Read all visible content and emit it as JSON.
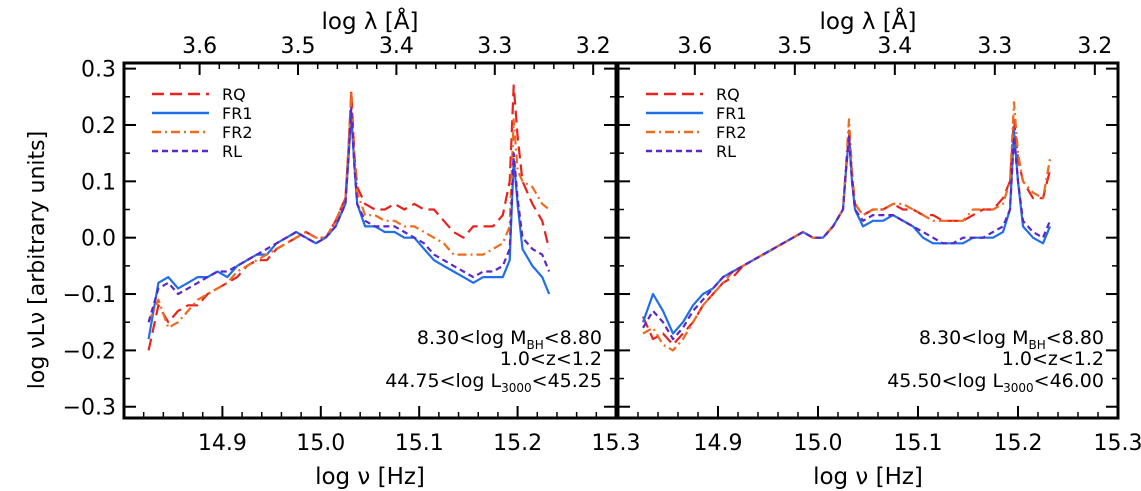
{
  "figure": {
    "top_axis_label": "log λ [Å]",
    "bottom_axis_label": "log ν [Hz]",
    "left_axis_label": "log νLν [arbitrary units]"
  },
  "chart_data": [
    {
      "type": "line",
      "panel": "left",
      "xlabel": "log ν [Hz]",
      "ylabel": "log νLν [arbitrary units]",
      "top_xlabel": "log λ [Å]",
      "xlim": [
        14.8,
        15.3
      ],
      "ylim": [
        -0.32,
        0.31
      ],
      "x_ticks": [
        14.9,
        15.0,
        15.1,
        15.2,
        15.3
      ],
      "x_tick_labels": [
        "14.9",
        "15.0",
        "15.1",
        "15.2",
        "15.3"
      ],
      "y_ticks": [
        -0.3,
        -0.2,
        -0.1,
        0.0,
        0.1,
        0.2,
        0.3
      ],
      "y_tick_labels": [
        "−0.3",
        "−0.2",
        "−0.1",
        "0.0",
        "0.1",
        "0.2",
        "0.3"
      ],
      "top_ticks": [
        3.6,
        3.5,
        3.4,
        3.3,
        3.2
      ],
      "top_tick_labels": [
        "3.6",
        "3.5",
        "3.4",
        "3.3",
        "3.2"
      ],
      "legend_position": "top-left",
      "annotations": [
        "8.30<log M",
        "BH",
        "<8.80",
        "1.0<z<1.2",
        "44.75<log L",
        "3000",
        "<45.25"
      ],
      "series": [
        {
          "name": "RQ",
          "color": "#e8221f",
          "dash": "12,6",
          "x": [
            14.825,
            14.835,
            14.845,
            14.855,
            14.865,
            14.875,
            14.885,
            14.895,
            14.905,
            14.915,
            14.925,
            14.935,
            14.945,
            14.955,
            14.965,
            14.975,
            14.985,
            14.995,
            15.005,
            15.015,
            15.025,
            15.028,
            15.031,
            15.034,
            15.037,
            15.045,
            15.055,
            15.065,
            15.075,
            15.085,
            15.095,
            15.105,
            15.115,
            15.125,
            15.135,
            15.145,
            15.155,
            15.165,
            15.175,
            15.185,
            15.192,
            15.196,
            15.2,
            15.205,
            15.215,
            15.225,
            15.232
          ],
          "y": [
            -0.2,
            -0.12,
            -0.15,
            -0.13,
            -0.12,
            -0.12,
            -0.1,
            -0.09,
            -0.08,
            -0.07,
            -0.05,
            -0.04,
            -0.04,
            -0.02,
            -0.01,
            0.0,
            0.01,
            0.0,
            0.0,
            0.03,
            0.07,
            0.15,
            0.26,
            0.15,
            0.09,
            0.06,
            0.05,
            0.05,
            0.06,
            0.05,
            0.06,
            0.05,
            0.05,
            0.03,
            0.01,
            0.0,
            0.02,
            0.02,
            0.02,
            0.04,
            0.1,
            0.27,
            0.18,
            0.1,
            0.06,
            0.03,
            -0.02
          ]
        },
        {
          "name": "FR1",
          "color": "#1f6fe8",
          "dash": "",
          "x": [
            14.825,
            14.835,
            14.845,
            14.855,
            14.865,
            14.875,
            14.885,
            14.895,
            14.905,
            14.915,
            14.925,
            14.935,
            14.945,
            14.955,
            14.965,
            14.975,
            14.985,
            14.995,
            15.005,
            15.015,
            15.025,
            15.028,
            15.031,
            15.034,
            15.037,
            15.045,
            15.055,
            15.065,
            15.075,
            15.085,
            15.095,
            15.105,
            15.115,
            15.125,
            15.135,
            15.145,
            15.155,
            15.165,
            15.175,
            15.185,
            15.192,
            15.196,
            15.2,
            15.205,
            15.215,
            15.225,
            15.232
          ],
          "y": [
            -0.18,
            -0.08,
            -0.07,
            -0.09,
            -0.08,
            -0.07,
            -0.07,
            -0.06,
            -0.07,
            -0.05,
            -0.04,
            -0.03,
            -0.03,
            -0.01,
            0.0,
            0.01,
            0.0,
            -0.01,
            0.0,
            0.02,
            0.06,
            0.14,
            0.22,
            0.13,
            0.06,
            0.02,
            0.02,
            0.01,
            0.01,
            0.0,
            0.0,
            -0.02,
            -0.04,
            -0.05,
            -0.06,
            -0.07,
            -0.08,
            -0.07,
            -0.07,
            -0.07,
            -0.04,
            0.14,
            0.06,
            -0.02,
            -0.05,
            -0.07,
            -0.1
          ]
        },
        {
          "name": "FR2",
          "color": "#f06a1e",
          "dash": "9,4,2,4",
          "x": [
            14.825,
            14.835,
            14.845,
            14.855,
            14.865,
            14.875,
            14.885,
            14.895,
            14.905,
            14.915,
            14.925,
            14.935,
            14.945,
            14.955,
            14.965,
            14.975,
            14.985,
            14.995,
            15.005,
            15.015,
            15.025,
            15.028,
            15.031,
            15.034,
            15.037,
            15.045,
            15.055,
            15.065,
            15.075,
            15.085,
            15.095,
            15.105,
            15.115,
            15.125,
            15.135,
            15.145,
            15.155,
            15.165,
            15.175,
            15.185,
            15.192,
            15.196,
            15.2,
            15.205,
            15.215,
            15.225,
            15.232
          ],
          "y": [
            -0.15,
            -0.11,
            -0.16,
            -0.15,
            -0.13,
            -0.11,
            -0.1,
            -0.09,
            -0.08,
            -0.06,
            -0.05,
            -0.04,
            -0.03,
            -0.02,
            -0.01,
            0.0,
            0.01,
            0.0,
            0.0,
            0.03,
            0.07,
            0.16,
            0.26,
            0.15,
            0.08,
            0.04,
            0.04,
            0.03,
            0.03,
            0.02,
            0.02,
            0.01,
            0.0,
            -0.01,
            -0.03,
            -0.03,
            -0.03,
            -0.03,
            -0.02,
            -0.01,
            0.02,
            0.21,
            0.12,
            0.1,
            0.09,
            0.06,
            0.05
          ]
        },
        {
          "name": "RL",
          "color": "#5b27c9",
          "dash": "6,4",
          "x": [
            14.825,
            14.835,
            14.845,
            14.855,
            14.865,
            14.875,
            14.885,
            14.895,
            14.905,
            14.915,
            14.925,
            14.935,
            14.945,
            14.955,
            14.965,
            14.975,
            14.985,
            14.995,
            15.005,
            15.015,
            15.025,
            15.028,
            15.031,
            15.034,
            15.037,
            15.045,
            15.055,
            15.065,
            15.075,
            15.085,
            15.095,
            15.105,
            15.115,
            15.125,
            15.135,
            15.145,
            15.155,
            15.165,
            15.175,
            15.185,
            15.192,
            15.196,
            15.2,
            15.205,
            15.215,
            15.225,
            15.232
          ],
          "y": [
            -0.15,
            -0.09,
            -0.08,
            -0.1,
            -0.09,
            -0.08,
            -0.07,
            -0.06,
            -0.06,
            -0.05,
            -0.04,
            -0.03,
            -0.02,
            -0.01,
            0.0,
            0.01,
            0.0,
            -0.01,
            0.0,
            0.02,
            0.06,
            0.14,
            0.23,
            0.13,
            0.06,
            0.03,
            0.02,
            0.02,
            0.02,
            0.01,
            0.0,
            -0.01,
            -0.03,
            -0.04,
            -0.05,
            -0.06,
            -0.07,
            -0.06,
            -0.06,
            -0.05,
            -0.02,
            0.15,
            0.07,
            0.0,
            -0.02,
            -0.03,
            -0.06
          ]
        }
      ]
    },
    {
      "type": "line",
      "panel": "right",
      "xlabel": "log ν [Hz]",
      "top_xlabel": "log λ [Å]",
      "xlim": [
        14.8,
        15.3
      ],
      "ylim": [
        -0.32,
        0.31
      ],
      "x_ticks": [
        14.9,
        15.0,
        15.1,
        15.2,
        15.3
      ],
      "x_tick_labels": [
        "14.9",
        "15.0",
        "15.1",
        "15.2",
        "15.3"
      ],
      "top_ticks": [
        3.6,
        3.5,
        3.4,
        3.3,
        3.2
      ],
      "top_tick_labels": [
        "3.6",
        "3.5",
        "3.4",
        "3.3",
        "3.2"
      ],
      "legend_position": "top-left",
      "annotations": [
        "8.30<log M",
        "BH",
        "<8.80",
        "1.0<z<1.2",
        "45.50<log L",
        "3000",
        "<46.00"
      ],
      "series": [
        {
          "name": "RQ",
          "color": "#e8221f",
          "dash": "12,6",
          "x": [
            14.825,
            14.835,
            14.845,
            14.855,
            14.865,
            14.875,
            14.885,
            14.895,
            14.905,
            14.915,
            14.925,
            14.935,
            14.945,
            14.955,
            14.965,
            14.975,
            14.985,
            14.995,
            15.005,
            15.015,
            15.025,
            15.028,
            15.031,
            15.034,
            15.037,
            15.045,
            15.055,
            15.065,
            15.075,
            15.085,
            15.095,
            15.105,
            15.115,
            15.125,
            15.135,
            15.145,
            15.155,
            15.165,
            15.175,
            15.185,
            15.192,
            15.196,
            15.2,
            15.205,
            15.215,
            15.225,
            15.232
          ],
          "y": [
            -0.14,
            -0.18,
            -0.17,
            -0.19,
            -0.17,
            -0.15,
            -0.12,
            -0.1,
            -0.08,
            -0.07,
            -0.05,
            -0.04,
            -0.03,
            -0.02,
            -0.01,
            0.0,
            0.01,
            0.0,
            0.0,
            0.02,
            0.05,
            0.12,
            0.19,
            0.11,
            0.06,
            0.04,
            0.05,
            0.05,
            0.06,
            0.05,
            0.05,
            0.04,
            0.04,
            0.03,
            0.03,
            0.03,
            0.04,
            0.05,
            0.05,
            0.07,
            0.1,
            0.21,
            0.14,
            0.1,
            0.07,
            0.07,
            0.12
          ]
        },
        {
          "name": "FR1",
          "color": "#1f6fe8",
          "dash": "",
          "x": [
            14.825,
            14.835,
            14.845,
            14.855,
            14.865,
            14.875,
            14.885,
            14.895,
            14.905,
            14.915,
            14.925,
            14.935,
            14.945,
            14.955,
            14.965,
            14.975,
            14.985,
            14.995,
            15.005,
            15.015,
            15.025,
            15.028,
            15.031,
            15.034,
            15.037,
            15.045,
            15.055,
            15.065,
            15.075,
            15.085,
            15.095,
            15.105,
            15.115,
            15.125,
            15.135,
            15.145,
            15.155,
            15.165,
            15.175,
            15.185,
            15.192,
            15.196,
            15.2,
            15.205,
            15.215,
            15.225,
            15.232
          ],
          "y": [
            -0.15,
            -0.1,
            -0.13,
            -0.17,
            -0.15,
            -0.12,
            -0.1,
            -0.09,
            -0.07,
            -0.06,
            -0.05,
            -0.04,
            -0.03,
            -0.02,
            -0.01,
            0.0,
            0.01,
            0.0,
            0.0,
            0.02,
            0.05,
            0.12,
            0.18,
            0.1,
            0.05,
            0.02,
            0.03,
            0.03,
            0.04,
            0.03,
            0.02,
            0.0,
            -0.01,
            -0.01,
            -0.01,
            -0.01,
            0.0,
            0.0,
            0.0,
            0.01,
            0.05,
            0.19,
            0.1,
            0.02,
            0.0,
            -0.01,
            0.02
          ]
        },
        {
          "name": "FR2",
          "color": "#f06a1e",
          "dash": "9,4,2,4",
          "x": [
            14.825,
            14.835,
            14.845,
            14.855,
            14.865,
            14.875,
            14.885,
            14.895,
            14.905,
            14.915,
            14.925,
            14.935,
            14.945,
            14.955,
            14.965,
            14.975,
            14.985,
            14.995,
            15.005,
            15.015,
            15.025,
            15.028,
            15.031,
            15.034,
            15.037,
            15.045,
            15.055,
            15.065,
            15.075,
            15.085,
            15.095,
            15.105,
            15.115,
            15.125,
            15.135,
            15.145,
            15.155,
            15.165,
            15.175,
            15.185,
            15.192,
            15.196,
            15.2,
            15.205,
            15.215,
            15.225,
            15.232
          ],
          "y": [
            -0.17,
            -0.16,
            -0.19,
            -0.2,
            -0.18,
            -0.15,
            -0.12,
            -0.1,
            -0.08,
            -0.06,
            -0.05,
            -0.04,
            -0.03,
            -0.02,
            -0.01,
            0.0,
            0.01,
            0.0,
            0.0,
            0.02,
            0.05,
            0.13,
            0.21,
            0.12,
            0.06,
            0.04,
            0.05,
            0.05,
            0.06,
            0.06,
            0.05,
            0.04,
            0.03,
            0.03,
            0.03,
            0.03,
            0.05,
            0.05,
            0.05,
            0.06,
            0.1,
            0.24,
            0.15,
            0.1,
            0.08,
            0.07,
            0.14
          ]
        },
        {
          "name": "RL",
          "color": "#5b27c9",
          "dash": "6,4",
          "x": [
            14.825,
            14.835,
            14.845,
            14.855,
            14.865,
            14.875,
            14.885,
            14.895,
            14.905,
            14.915,
            14.925,
            14.935,
            14.945,
            14.955,
            14.965,
            14.975,
            14.985,
            14.995,
            15.005,
            15.015,
            15.025,
            15.028,
            15.031,
            15.034,
            15.037,
            15.045,
            15.055,
            15.065,
            15.075,
            15.085,
            15.095,
            15.105,
            15.115,
            15.125,
            15.135,
            15.145,
            15.155,
            15.165,
            15.175,
            15.185,
            15.192,
            15.196,
            15.2,
            15.205,
            15.215,
            15.225,
            15.232
          ],
          "y": [
            -0.16,
            -0.13,
            -0.15,
            -0.18,
            -0.16,
            -0.13,
            -0.11,
            -0.09,
            -0.07,
            -0.06,
            -0.05,
            -0.04,
            -0.03,
            -0.02,
            -0.01,
            0.0,
            0.01,
            0.0,
            0.0,
            0.02,
            0.05,
            0.12,
            0.18,
            0.1,
            0.05,
            0.03,
            0.04,
            0.04,
            0.04,
            0.03,
            0.02,
            0.01,
            0.0,
            -0.01,
            -0.01,
            0.0,
            0.0,
            0.0,
            0.01,
            0.02,
            0.05,
            0.18,
            0.1,
            0.03,
            0.01,
            0.0,
            0.03
          ]
        }
      ]
    }
  ]
}
